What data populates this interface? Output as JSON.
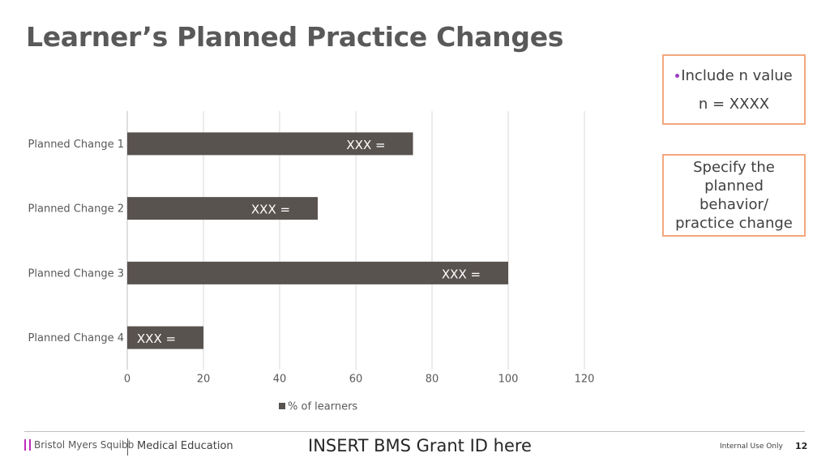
{
  "title": "Learner’s Planned Practice Changes",
  "chart_data": {
    "type": "bar",
    "orientation": "horizontal",
    "categories": [
      "Planned Change 1",
      "Planned Change 2",
      "Planned Change 3",
      "Planned Change 4"
    ],
    "series": [
      {
        "name": "% of learners",
        "color": "#595350",
        "values": [
          75,
          50,
          100,
          20
        ],
        "value_labels": [
          "XXX =",
          "XXX =",
          "XXX =",
          "XXX ="
        ]
      }
    ],
    "xlim": [
      0,
      120
    ],
    "xticks": [
      0,
      20,
      40,
      60,
      80,
      100,
      120
    ],
    "grid": true,
    "legend": "bottom"
  },
  "callouts": [
    {
      "lines": [
        "Include n value",
        "n = XXXX"
      ]
    },
    {
      "lines": [
        "Specify the planned behavior/ practice change"
      ]
    }
  ],
  "footer": {
    "brand": "Bristol Myers Squibb",
    "department": "Medical Education",
    "grant": "INSERT BMS Grant ID here",
    "classification": "Internal Use Only",
    "page": "12"
  }
}
